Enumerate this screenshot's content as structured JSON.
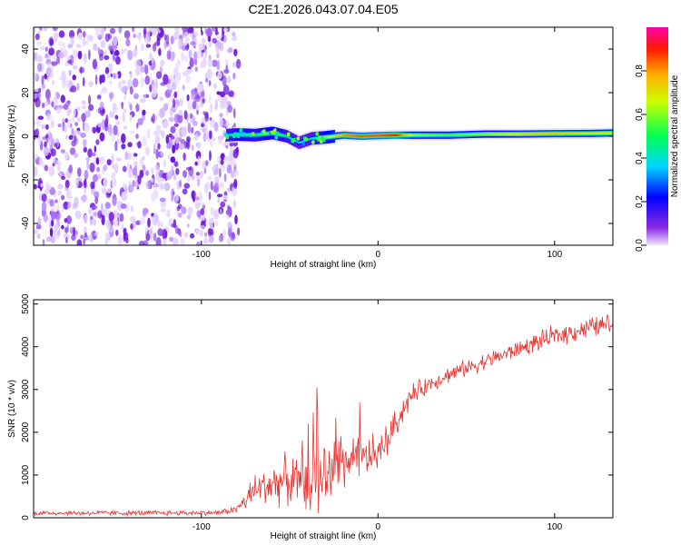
{
  "title": "C2E1.2026.043.07.04.E05",
  "chart_data": [
    {
      "type": "heatmap",
      "title": "C2E1.2026.043.07.04.E05",
      "xlabel": "Height of straight line (km)",
      "ylabel": "Frequency (Hz)",
      "xlim": [
        -195,
        133
      ],
      "ylim": [
        -50,
        50
      ],
      "xticks": [
        -100,
        0,
        100
      ],
      "xtick_labels": [
        "-100",
        "0",
        "100"
      ],
      "yticks": [
        -40,
        -20,
        0,
        20,
        40
      ],
      "ytick_labels": [
        "-40",
        "-20",
        "0",
        "20",
        "40"
      ],
      "noise_region_x": [
        -195,
        -82
      ],
      "ridge": {
        "x": [
          -86,
          -80,
          -70,
          -60,
          -52,
          -45,
          -38,
          -30,
          -20,
          -10,
          0,
          10,
          20,
          40,
          60,
          80,
          100,
          120,
          133
        ],
        "frequency": [
          0.5,
          0.8,
          0.5,
          1.5,
          0,
          -3,
          -1,
          -0.5,
          0.5,
          0,
          0.3,
          0.5,
          0.5,
          0.5,
          1,
          1,
          1.2,
          1.3,
          1.5
        ],
        "peak_amplitude": [
          0.4,
          0.55,
          0.5,
          0.6,
          0.45,
          0.35,
          0.4,
          0.6,
          0.8,
          0.85,
          0.85,
          0.9,
          0.6,
          0.55,
          0.6,
          0.7,
          0.75,
          0.7,
          0.7
        ]
      },
      "colorbar": {
        "label": "Normalized spectral amplitude",
        "range": [
          0,
          1
        ],
        "ticks": [
          0.0,
          0.2,
          0.4,
          0.6,
          0.8
        ],
        "tick_labels": [
          "0.0",
          "0.2",
          "0.4",
          "0.6",
          "0.8"
        ]
      }
    },
    {
      "type": "line",
      "xlabel": "Height of straight line (km)",
      "ylabel": "SNR (10 * v/v)",
      "xlim": [
        -195,
        133
      ],
      "ylim": [
        0,
        5100
      ],
      "xticks": [
        -100,
        0,
        100
      ],
      "xtick_labels": [
        "-100",
        "0",
        "100"
      ],
      "yticks": [
        0,
        1000,
        2000,
        3000,
        4000,
        5000
      ],
      "ytick_labels": [
        "0",
        "1000",
        "2000",
        "3000",
        "4000",
        "5000"
      ],
      "series": [
        {
          "name": "SNR",
          "color": "#e8322e",
          "x": [
            -195,
            -160,
            -120,
            -90,
            -80,
            -75,
            -70,
            -60,
            -50,
            -45,
            -40,
            -35,
            -30,
            -25,
            -20,
            -15,
            -10,
            -5,
            0,
            5,
            10,
            15,
            20,
            30,
            40,
            50,
            60,
            70,
            80,
            90,
            100,
            110,
            120,
            133
          ],
          "y": [
            110,
            110,
            110,
            120,
            200,
            400,
            650,
            800,
            900,
            750,
            650,
            850,
            1000,
            1200,
            1300,
            1350,
            1300,
            1450,
            1500,
            1800,
            2200,
            2600,
            2900,
            3150,
            3350,
            3500,
            3650,
            3800,
            3950,
            4100,
            4250,
            4350,
            4450,
            4550
          ],
          "noise_amplitude": [
            60,
            60,
            60,
            60,
            100,
            250,
            400,
            500,
            600,
            700,
            700,
            800,
            800,
            700,
            700,
            600,
            550,
            500,
            450,
            400,
            350,
            300,
            250,
            200,
            200,
            200,
            200,
            200,
            200,
            220,
            250,
            250,
            250,
            250
          ]
        }
      ]
    }
  ]
}
